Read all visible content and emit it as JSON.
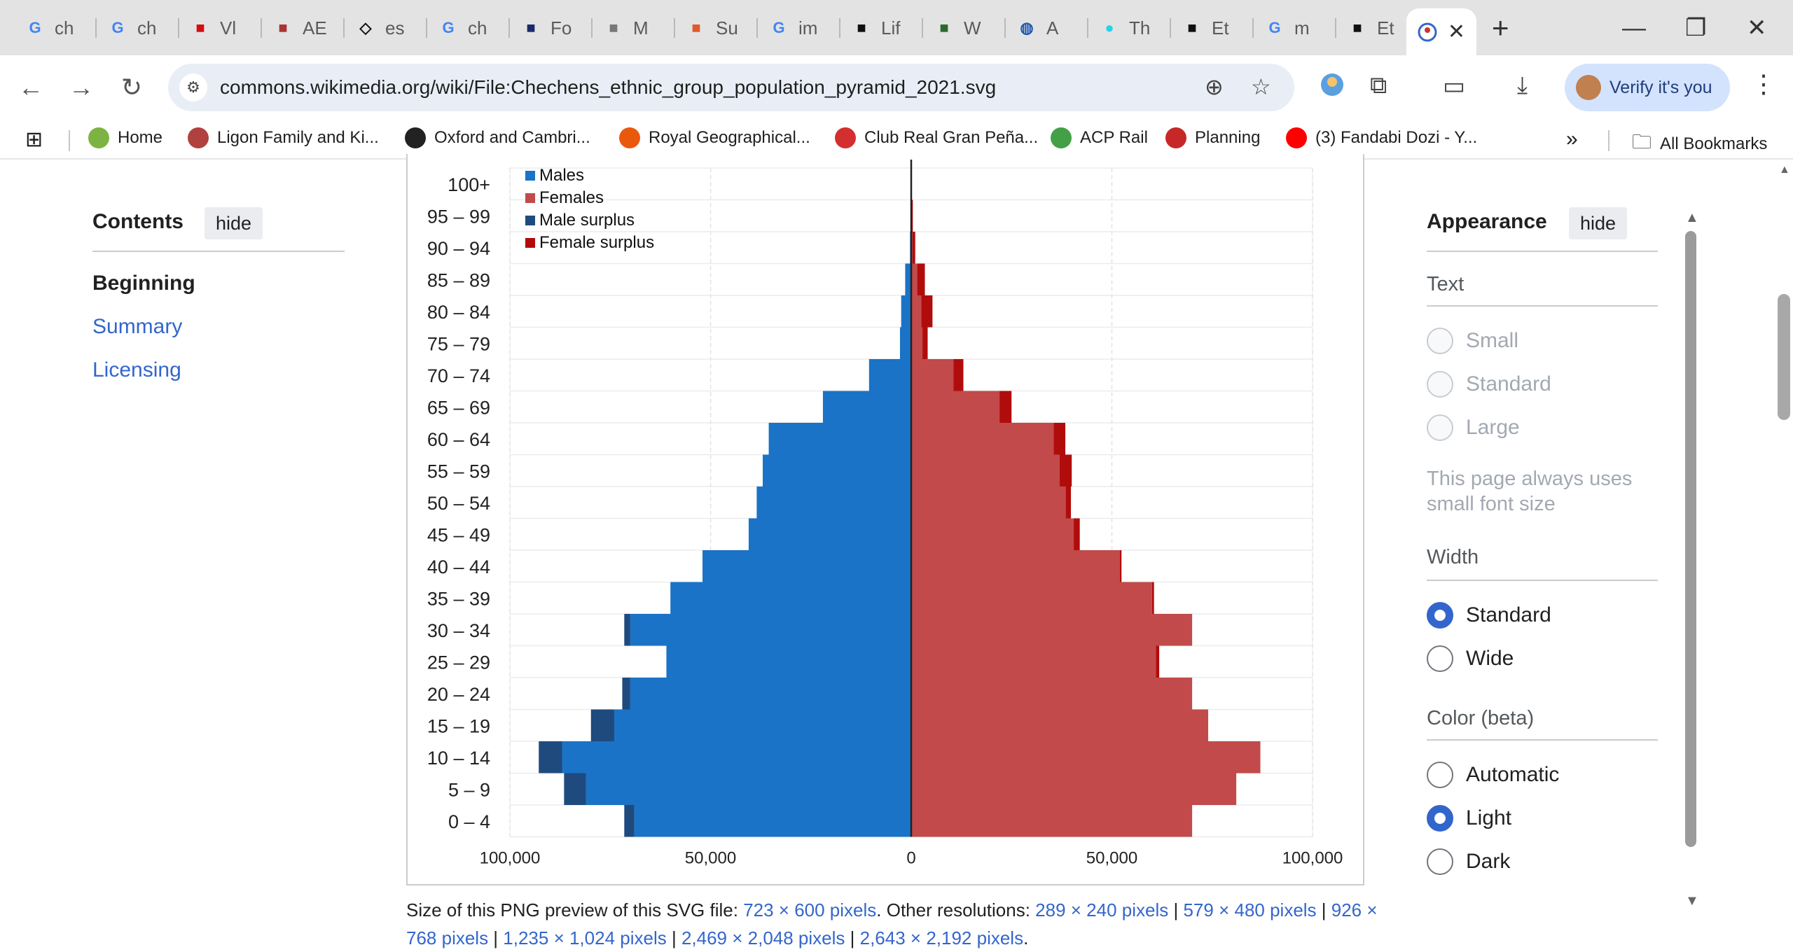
{
  "browser": {
    "tabs": [
      {
        "label": "ch",
        "icon": "google-icon",
        "color": "#4285f4"
      },
      {
        "label": "ch",
        "icon": "google-icon",
        "color": "#4285f4"
      },
      {
        "label": "Vl",
        "icon": "e-icon",
        "color": "#d20f0f"
      },
      {
        "label": "AE",
        "icon": "abs-icon",
        "color": "#a33"
      },
      {
        "label": "es",
        "icon": "diamond-icon",
        "color": "#111"
      },
      {
        "label": "ch",
        "icon": "google-icon",
        "color": "#4285f4"
      },
      {
        "label": "Fo",
        "icon": "data-icon",
        "color": "#1a2b6d"
      },
      {
        "label": "M",
        "icon": "image-icon",
        "color": "#777"
      },
      {
        "label": "Su",
        "icon": "sun-icon",
        "color": "#e05a2a"
      },
      {
        "label": "im",
        "icon": "google-icon",
        "color": "#4285f4"
      },
      {
        "label": "Lif",
        "icon": "fs-icon",
        "color": "#111"
      },
      {
        "label": "W",
        "icon": "map-icon",
        "color": "#2d6a2d"
      },
      {
        "label": "A",
        "icon": "globe-icon",
        "color": "#1a56b0"
      },
      {
        "label": "Th",
        "icon": "circle-icon",
        "color": "#22d3ee"
      },
      {
        "label": "Et",
        "icon": "wikipedia-icon",
        "color": "#111"
      },
      {
        "label": "m",
        "icon": "google-icon",
        "color": "#4285f4"
      },
      {
        "label": "Et",
        "icon": "wikipedia-dark-icon",
        "color": "#111"
      }
    ],
    "active_tab_icon": "wikimedia-icon",
    "url": "commons.wikimedia.org/wiki/File:Chechens_ethnic_group_population_pyramid_2021.svg",
    "verify_label": "Verify it's you",
    "bookmarks": [
      {
        "label": "Home",
        "color": "#7cb342"
      },
      {
        "label": "Ligon Family and Ki...",
        "color": "#b0413e"
      },
      {
        "label": "Oxford and Cambri...",
        "color": "#222"
      },
      {
        "label": "Royal Geographical...",
        "color": "#ea580c"
      },
      {
        "label": "Club Real Gran Peña...",
        "color": "#d32f2f"
      },
      {
        "label": "ACP Rail",
        "color": "#43a047"
      },
      {
        "label": "Planning",
        "color": "#c62828"
      },
      {
        "label": "(3) Fandabi Dozi - Y...",
        "color": "#ff0000"
      }
    ],
    "more_bookmarks": "»",
    "all_bookmarks": "All Bookmarks"
  },
  "contents": {
    "title": "Contents",
    "hide": "hide",
    "items": [
      "Beginning",
      "Summary",
      "Licensing"
    ]
  },
  "appearance": {
    "title": "Appearance",
    "hide": "hide",
    "text_heading": "Text",
    "text_options": [
      "Small",
      "Standard",
      "Large"
    ],
    "text_note": "This page always uses small font size",
    "width_heading": "Width",
    "width_options": [
      "Standard",
      "Wide"
    ],
    "width_selected": "Standard",
    "color_heading": "Color (beta)",
    "color_options": [
      "Automatic",
      "Light",
      "Dark"
    ],
    "color_selected": "Light"
  },
  "caption": {
    "prefix": "Size of this PNG preview of this SVG file: ",
    "preview": "723 × 600 pixels",
    "mid": ". Other resolutions: ",
    "resolutions": [
      "289 × 240 pixels",
      "579 × 480 pixels",
      "926 × 768 pixels",
      "1,235 × 1,024 pixels",
      "2,469 × 2,048 pixels",
      "2,643 × 2,192 pixels"
    ],
    "suffix": "."
  },
  "chart_data": {
    "type": "population-pyramid",
    "categories": [
      "0 – 4",
      "5 – 9",
      "10 – 14",
      "15 – 19",
      "20 – 24",
      "25 – 29",
      "30 – 34",
      "35 – 39",
      "40 – 44",
      "45 – 49",
      "50 – 54",
      "55 – 59",
      "60 – 64",
      "65 – 69",
      "70 – 74",
      "75 – 79",
      "80 – 84",
      "85 – 89",
      "90 – 94",
      "95 – 99",
      "100+"
    ],
    "series": [
      {
        "name": "Males",
        "color": "#1a73c6",
        "values": [
          69000,
          81000,
          87000,
          74000,
          70000,
          61000,
          70000,
          60000,
          52000,
          40500,
          38500,
          37000,
          35500,
          22000,
          10500,
          2800,
          2500,
          1500,
          300,
          100,
          50
        ]
      },
      {
        "name": "Females",
        "color": "#c24a4a",
        "values": [
          70000,
          81000,
          87000,
          74000,
          70000,
          61000,
          70000,
          60000,
          52000,
          40500,
          38500,
          37000,
          35500,
          22000,
          10500,
          2800,
          2500,
          1500,
          300,
          100,
          50
        ]
      },
      {
        "name": "Male surplus",
        "color": "#1f4a7e",
        "values": [
          2500,
          5500,
          5800,
          5800,
          2000,
          0,
          1500,
          0,
          0,
          0,
          0,
          0,
          0,
          0,
          0,
          0,
          0,
          0,
          0,
          0,
          0
        ]
      },
      {
        "name": "Female surplus",
        "color": "#b10c0c",
        "values": [
          0,
          0,
          0,
          0,
          0,
          800,
          0,
          500,
          400,
          1500,
          1300,
          3000,
          2900,
          3000,
          2500,
          1300,
          2800,
          1900,
          700,
          300,
          0
        ]
      }
    ],
    "xticks": [
      "100,000",
      "50,000",
      "0",
      "50,000",
      "100,000"
    ],
    "xlim": [
      -100000,
      100000
    ],
    "legend_position": "top-left",
    "grid": true
  }
}
